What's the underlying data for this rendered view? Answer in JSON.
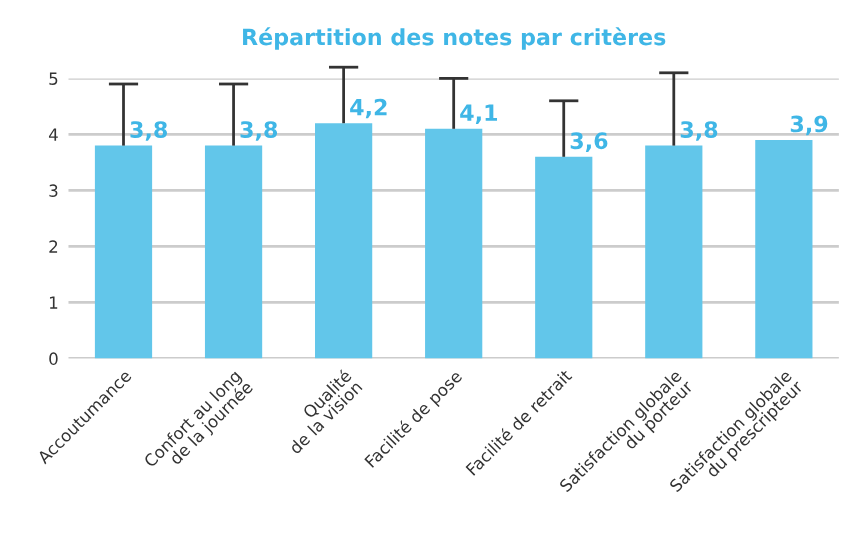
{
  "chart_data": {
    "type": "bar",
    "title": "Répartition des notes par critères",
    "categories": [
      "Accoutumance",
      "Confort au long\nde la journée",
      "Qualité\nde la vision",
      "Facilité de pose",
      "Facilité de retrait",
      "Satisfaction globale\ndu porteur",
      "Satisfaction globale\ndu prescripteur"
    ],
    "values": [
      3.8,
      3.8,
      4.2,
      4.1,
      3.6,
      3.8,
      3.9
    ],
    "value_labels": [
      "3,8",
      "3,8",
      "4,2",
      "4,1",
      "3,6",
      "3,8",
      "3,9"
    ],
    "errors": [
      [
        3.8,
        4.9
      ],
      [
        3.8,
        4.9
      ],
      [
        4.2,
        5.2
      ],
      [
        4.1,
        5.0
      ],
      [
        3.6,
        4.6
      ],
      [
        3.8,
        5.1
      ],
      null
    ],
    "color": "#62c6ea",
    "ylim": [
      0,
      5
    ],
    "yticks": [
      0,
      1,
      2,
      3,
      4,
      5
    ],
    "grid": "y",
    "legend": false
  }
}
